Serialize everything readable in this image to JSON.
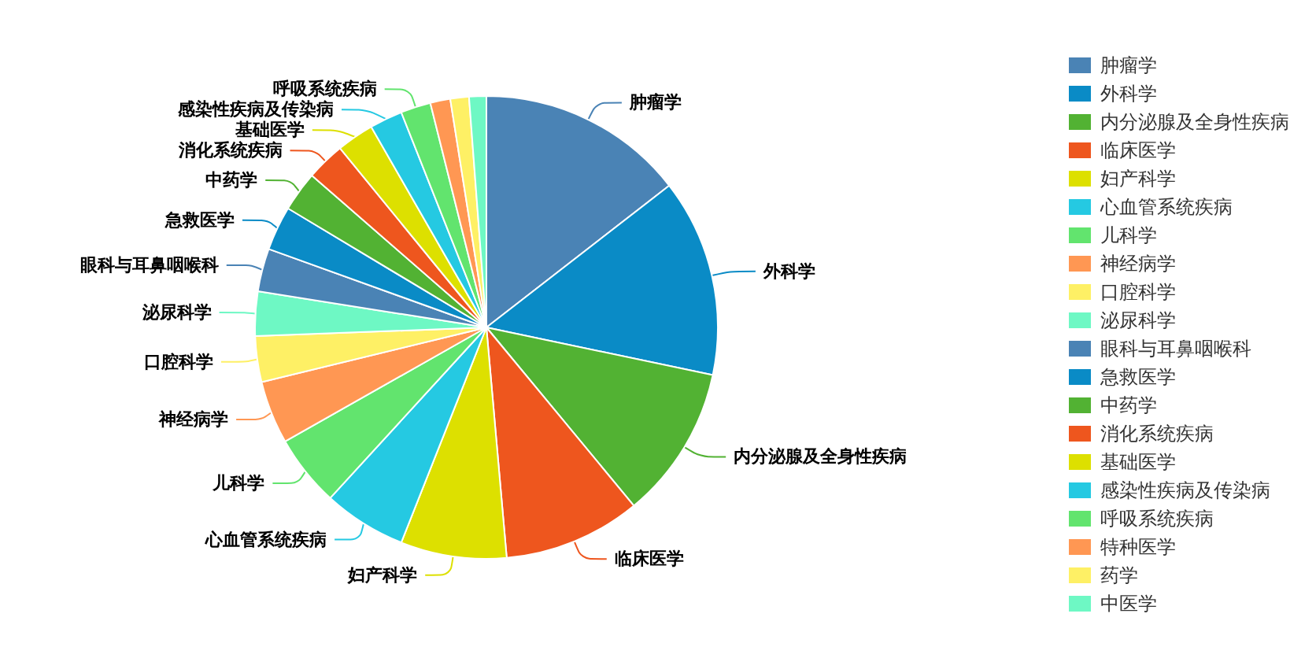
{
  "chart_data": {
    "type": "pie",
    "categories": [
      "肿瘤学",
      "外科学",
      "内分泌腺及全身性疾病",
      "临床医学",
      "妇产科学",
      "心血管系统疾病",
      "儿科学",
      "神经病学",
      "口腔科学",
      "泌尿科学",
      "眼科与耳鼻咽喉科",
      "急救医学",
      "中药学",
      "消化系统疾病",
      "基础医学",
      "感染性疾病及传染病",
      "呼吸系统疾病",
      "特种医学",
      "药学",
      "中医学"
    ],
    "values": [
      14.5,
      13.8,
      10.7,
      9.6,
      7.4,
      5.8,
      5.0,
      4.4,
      3.2,
      3.1,
      3.0,
      3.1,
      2.8,
      2.7,
      2.6,
      2.3,
      2.1,
      1.4,
      1.3,
      1.2
    ],
    "colors": [
      "#4a83b5",
      "#0a8bc6",
      "#52b233",
      "#ee561e",
      "#dde000",
      "#25c9e2",
      "#62e46e",
      "#ff9753",
      "#fef065",
      "#6ef8c4",
      "#4a83b5",
      "#0a8bc6",
      "#52b233",
      "#ee561e",
      "#dde000",
      "#25c9e2",
      "#62e46e",
      "#ff9753",
      "#fef065",
      "#6ef8c4"
    ],
    "legend": "right"
  }
}
